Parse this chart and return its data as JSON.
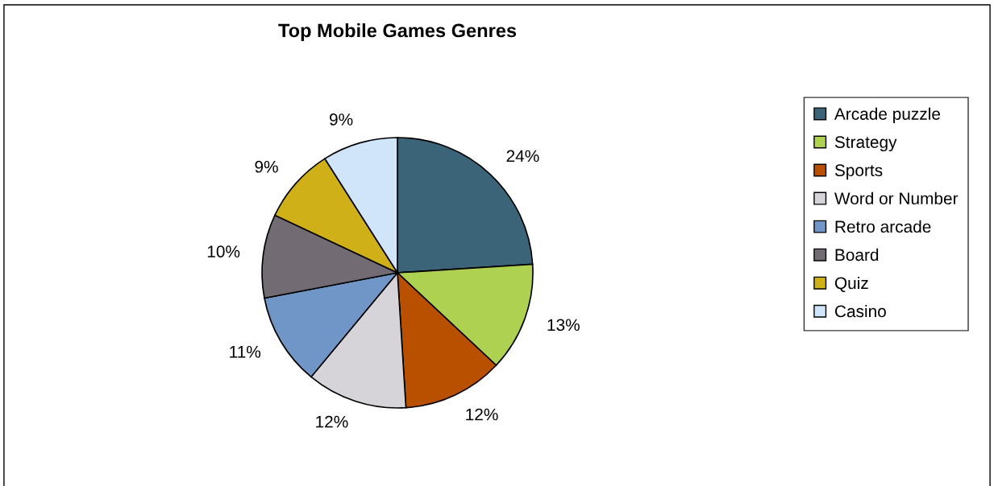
{
  "chart_data": {
    "type": "pie",
    "title": "Top Mobile Games Genres",
    "categories": [
      "Arcade puzzle",
      "Strategy",
      "Sports",
      "Word or Number",
      "Retro arcade",
      "Board",
      "Quiz",
      "Casino"
    ],
    "values": [
      24,
      13,
      12,
      12,
      11,
      10,
      9,
      9
    ],
    "colors": [
      "#3c6478",
      "#aed152",
      "#b85000",
      "#d6d4d8",
      "#7096c8",
      "#736b73",
      "#d0b018",
      "#d0e4fa"
    ],
    "value_labels": [
      "24%",
      "13%",
      "12%",
      "12%",
      "11%",
      "10%",
      "9%",
      "9%"
    ],
    "legend": "right"
  }
}
